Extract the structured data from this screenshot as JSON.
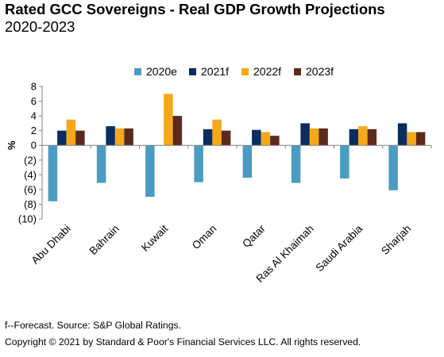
{
  "header": {
    "title": "Rated GCC Sovereigns - Real GDP Growth Projections",
    "subtitle": "2020-2023"
  },
  "footer": {
    "note": "f--Forecast. Source: S&P Global Ratings.",
    "copyright": "Copyright © 2021 by Standard & Poor's Financial Services LLC. All rights reserved."
  },
  "chart_data": {
    "type": "bar",
    "title": "Rated GCC Sovereigns - Real GDP Growth Projections",
    "subtitle": "2020-2023",
    "ylabel": "%",
    "xlabel": "",
    "ylim": [
      -10,
      8
    ],
    "yticks": [
      8,
      6,
      4,
      2,
      0,
      -2,
      -4,
      -6,
      -8,
      -10
    ],
    "ytick_labels": [
      "8",
      "6",
      "4",
      "2",
      "0",
      "(2)",
      "(4)",
      "(6)",
      "(8)",
      "(10)"
    ],
    "grid": false,
    "legend_position": "top",
    "categories": [
      "Abu Dhabi",
      "Bahrain",
      "Kuwait",
      "Oman",
      "Qatar",
      "Ras Al Khaimah",
      "Saudi Arabia",
      "Sharjah"
    ],
    "series": [
      {
        "name": "2020e",
        "color": "#4a9cc3",
        "values": [
          -7.6,
          -5.1,
          -7.0,
          -5.0,
          -4.4,
          -5.1,
          -4.5,
          -6.1
        ]
      },
      {
        "name": "2021f",
        "color": "#0b2c5f",
        "values": [
          2.0,
          2.6,
          0.0,
          2.2,
          2.1,
          3.0,
          2.2,
          3.0
        ]
      },
      {
        "name": "2022f",
        "color": "#f5a818",
        "values": [
          3.5,
          2.3,
          7.0,
          3.5,
          1.8,
          2.3,
          2.6,
          1.8
        ]
      },
      {
        "name": "2023f",
        "color": "#5b2a1f",
        "values": [
          2.0,
          2.3,
          4.0,
          2.0,
          1.3,
          2.3,
          2.2,
          1.8
        ]
      }
    ]
  }
}
